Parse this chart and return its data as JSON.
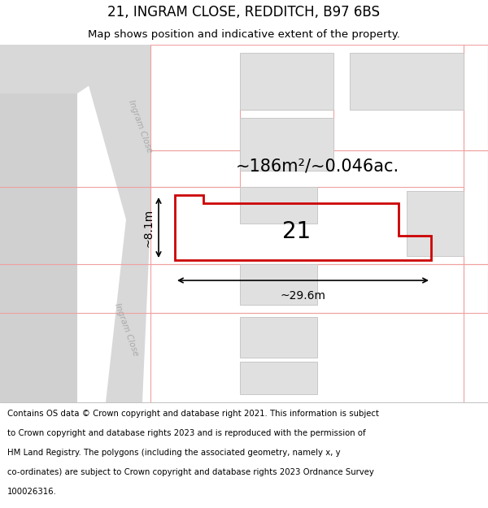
{
  "title": "21, INGRAM CLOSE, REDDITCH, B97 6BS",
  "subtitle": "Map shows position and indicative extent of the property.",
  "footer_lines": [
    "Contains OS data © Crown copyright and database right 2021. This information is subject",
    "to Crown copyright and database rights 2023 and is reproduced with the permission of",
    "HM Land Registry. The polygons (including the associated geometry, namely x, y",
    "co-ordinates) are subject to Crown copyright and database rights 2023 Ordnance Survey",
    "100026316."
  ],
  "map_bg": "#f5f5f5",
  "road_fill": "#d8d8d8",
  "plot_edge": "#f0a0a0",
  "highlight_edge": "#cc0000",
  "highlight_lw": 2.0,
  "building_fill": "#e0e0e0",
  "building_edge": "#c8c8c8",
  "area_label": "~186m²/~0.046ac.",
  "plot_number": "21",
  "dim_width": "~29.6m",
  "dim_height": "~8.1m",
  "road_label_upper": "Ingram Close",
  "road_label_lower": "Ingram Close",
  "title_fontsize": 12,
  "subtitle_fontsize": 9.5,
  "footer_fontsize": 7.3
}
